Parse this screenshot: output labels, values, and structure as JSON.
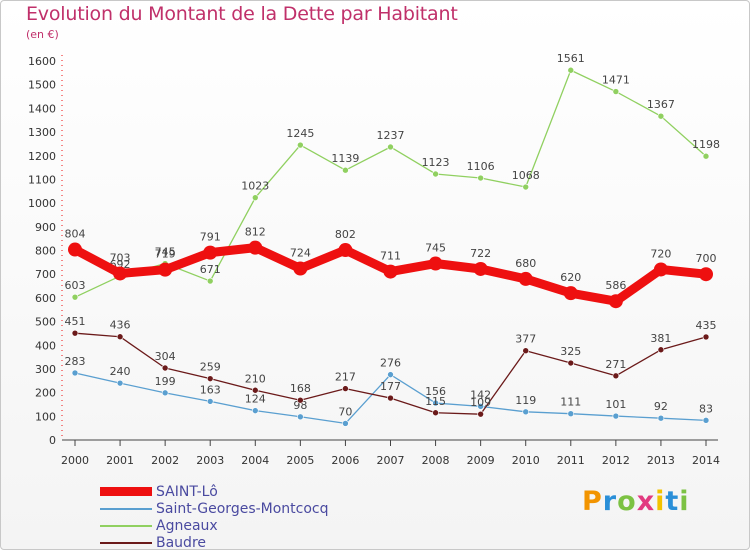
{
  "header": {
    "title": "Evolution du Montant de la Dette par Habitant",
    "subtitle": "(en €)"
  },
  "brand": {
    "letters": [
      "P",
      "r",
      "o",
      "x",
      "i",
      "t",
      "i"
    ],
    "colors": [
      "#f29400",
      "#2a8fd8",
      "#7cc243",
      "#e23a80",
      "#f2c200",
      "#2a8fd8",
      "#7cc243"
    ]
  },
  "chart_data": {
    "type": "line",
    "title": "Evolution du Montant de la Dette par Habitant",
    "subtitle": "(en €)",
    "xlabel": "",
    "ylabel": "",
    "x": [
      2000,
      2001,
      2002,
      2003,
      2004,
      2005,
      2006,
      2007,
      2008,
      2009,
      2010,
      2011,
      2012,
      2013,
      2014
    ],
    "ylim": [
      0,
      1600
    ],
    "yticks": [
      0,
      100,
      200,
      300,
      400,
      500,
      600,
      700,
      800,
      900,
      1000,
      1100,
      1200,
      1300,
      1400,
      1500,
      1600
    ],
    "grid": false,
    "legend_position": "bottom-left",
    "series": [
      {
        "name": "Agneaux",
        "color": "#90d060",
        "values": [
          603,
          692,
          745,
          671,
          1023,
          1245,
          1139,
          1237,
          1123,
          1106,
          1068,
          1561,
          1471,
          1367,
          1198
        ]
      },
      {
        "name": "Saint-Georges-Montcocq",
        "color": "#5a9fd0",
        "values": [
          283,
          240,
          199,
          163,
          124,
          98,
          70,
          276,
          156,
          142,
          119,
          111,
          101,
          92,
          83
        ]
      },
      {
        "name": "Baudre",
        "color": "#6b1a1a",
        "values": [
          451,
          436,
          304,
          259,
          210,
          168,
          217,
          177,
          115,
          109,
          377,
          325,
          271,
          381,
          435
        ]
      },
      {
        "name": "SAINT-Lô",
        "color": "#ee1010",
        "values": [
          804,
          703,
          719,
          791,
          812,
          724,
          802,
          711,
          745,
          722,
          680,
          620,
          586,
          720,
          700
        ]
      }
    ],
    "legend_order": [
      "SAINT-Lô",
      "Saint-Georges-Montcocq",
      "Agneaux",
      "Baudre"
    ]
  }
}
